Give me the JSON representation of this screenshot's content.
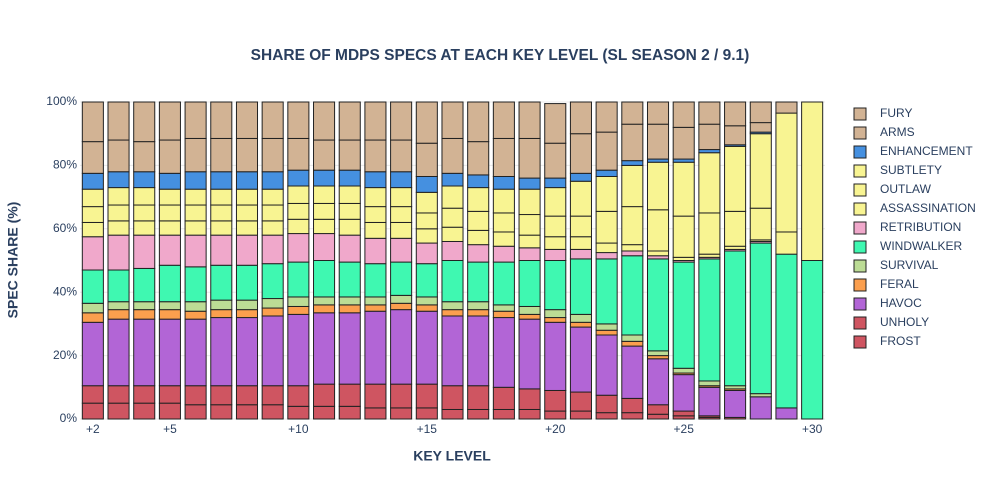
{
  "chart_data": {
    "type": "bar",
    "stacked": true,
    "title": "SHARE OF MDPS SPECS AT EACH KEY LEVEL (SL SEASON 2 / 9.1)",
    "x_label": "KEY LEVEL",
    "y_label": "SPEC SHARE (%)",
    "x": [
      2,
      3,
      4,
      5,
      6,
      7,
      8,
      9,
      10,
      11,
      12,
      13,
      14,
      15,
      16,
      17,
      18,
      19,
      20,
      21,
      22,
      23,
      24,
      25,
      26,
      27,
      28,
      29,
      30
    ],
    "xlim": [
      1.5,
      30.5
    ],
    "xticks": [
      {
        "value": 2,
        "label": "+2"
      },
      {
        "value": 5,
        "label": "+5"
      },
      {
        "value": 10,
        "label": "+10"
      },
      {
        "value": 15,
        "label": "+15"
      },
      {
        "value": 20,
        "label": "+20"
      },
      {
        "value": 25,
        "label": "+25"
      },
      {
        "value": 30,
        "label": "+30"
      }
    ],
    "ylim": [
      0,
      100
    ],
    "yticks": [
      {
        "value": 0,
        "label": "0%"
      },
      {
        "value": 20,
        "label": "20%"
      },
      {
        "value": 40,
        "label": "40%"
      },
      {
        "value": 60,
        "label": "60%"
      },
      {
        "value": 80,
        "label": "80%"
      },
      {
        "value": 100,
        "label": "100%"
      }
    ],
    "series": [
      {
        "name": "FROST",
        "color": "#cf5561",
        "values": [
          5,
          5,
          5,
          5,
          4.5,
          4.5,
          4.5,
          4.5,
          4,
          4,
          4,
          3.5,
          3.5,
          3.5,
          3,
          3,
          3,
          3,
          2.5,
          2.5,
          2,
          2,
          1.5,
          1,
          0.5,
          0.5,
          0,
          0,
          0
        ]
      },
      {
        "name": "UNHOLY",
        "color": "#cf5561",
        "values": [
          5.5,
          5.5,
          5.5,
          5.5,
          6,
          6,
          6,
          6,
          6.5,
          7,
          7,
          7.5,
          7.5,
          7.5,
          7.5,
          7.5,
          7,
          6.5,
          6.5,
          6,
          5.5,
          4.5,
          3,
          1.5,
          0.5,
          0,
          0,
          0,
          0
        ]
      },
      {
        "name": "HAVOC",
        "color": "#b265d6",
        "values": [
          20,
          21,
          21,
          21,
          21,
          21.5,
          21.5,
          22,
          22.5,
          22.5,
          22.5,
          23,
          23.5,
          23,
          22,
          22,
          22,
          22,
          21.5,
          20.5,
          19,
          16.5,
          14.5,
          11.5,
          9,
          8.5,
          7,
          3.5,
          0
        ]
      },
      {
        "name": "FERAL",
        "color": "#fb9f4e",
        "values": [
          3,
          3,
          3,
          3,
          2.5,
          2.5,
          2.5,
          2.5,
          2.5,
          2.5,
          2.5,
          2,
          2,
          2,
          2,
          2,
          2,
          1.5,
          1.5,
          1.5,
          1.5,
          1.5,
          1,
          0.5,
          0.5,
          0.5,
          0,
          0,
          0
        ]
      },
      {
        "name": "SURVIVAL",
        "color": "#bcdc95",
        "values": [
          3,
          2.5,
          2.5,
          2.5,
          3,
          3,
          3,
          3,
          3,
          2.5,
          2.5,
          2.5,
          2.5,
          2.5,
          2.5,
          2.5,
          2,
          2.5,
          2.5,
          2.5,
          2,
          2,
          1.5,
          1.5,
          1.5,
          1,
          1,
          0,
          0
        ]
      },
      {
        "name": "WINDWALKER",
        "color": "#3ff8b1",
        "values": [
          10.5,
          10,
          10.5,
          11.5,
          11,
          11,
          11,
          11,
          11,
          11.5,
          11,
          10.5,
          10.5,
          10.5,
          13,
          12.5,
          13.5,
          14.5,
          15.5,
          17.5,
          20.5,
          25,
          29,
          33.5,
          38.5,
          42.5,
          47.5,
          48.5,
          50
        ]
      },
      {
        "name": "RETRIBUTION",
        "color": "#f0a8cb",
        "values": [
          10.5,
          11,
          10.5,
          9.5,
          10,
          9.5,
          9.5,
          9,
          9,
          8.5,
          8.5,
          8,
          7.5,
          6.5,
          6,
          5.5,
          5,
          4,
          3.5,
          3,
          2,
          1.5,
          1,
          0.5,
          0.5,
          0.5,
          0.5,
          0,
          0
        ]
      },
      {
        "name": "ASSASSINATION",
        "color": "#f8f492",
        "values": [
          4.5,
          4.5,
          4.5,
          4.5,
          4.5,
          4.5,
          4.5,
          4.5,
          4.5,
          4.5,
          5,
          5,
          5,
          4.5,
          4.5,
          4.5,
          4.5,
          4,
          4,
          4,
          3,
          2,
          1.5,
          1,
          1,
          1,
          0.5,
          7,
          0
        ]
      },
      {
        "name": "OUTLAW",
        "color": "#f8f492",
        "values": [
          5,
          5,
          5,
          5,
          5,
          5,
          5,
          5,
          5,
          5,
          5,
          5,
          5,
          5,
          6,
          6,
          6,
          6.5,
          6.5,
          6.5,
          10,
          12,
          13,
          13,
          13,
          11,
          10,
          0,
          50
        ]
      },
      {
        "name": "SUBTLETY",
        "color": "#f8f492",
        "values": [
          5.5,
          5.5,
          5.5,
          5,
          5,
          5,
          5,
          5,
          5.5,
          5.5,
          5.5,
          6,
          6,
          6.5,
          7,
          7.5,
          7.5,
          8,
          9,
          11,
          11,
          13,
          15,
          17,
          19,
          20.5,
          23.5,
          37.5,
          0
        ]
      },
      {
        "name": "ENHANCEMENT",
        "color": "#4590e0",
        "values": [
          5,
          5,
          5,
          5,
          5.5,
          5.5,
          5.5,
          5.5,
          5,
          5,
          5,
          5,
          5,
          5,
          4,
          4,
          4,
          3.5,
          3,
          2.5,
          2,
          1.5,
          1,
          1,
          1,
          0.5,
          0.5,
          0,
          0
        ]
      },
      {
        "name": "ARMS",
        "color": "#d2b394",
        "values": [
          10,
          10,
          9.5,
          10.5,
          10.5,
          10.5,
          10.5,
          10.5,
          10,
          9.5,
          9.5,
          10,
          10,
          10.5,
          11,
          10.5,
          12,
          12.5,
          11,
          12.5,
          12,
          11.5,
          11,
          10,
          8,
          6,
          3,
          0,
          0
        ]
      },
      {
        "name": "FURY",
        "color": "#d2b394",
        "values": [
          12.5,
          12,
          12.5,
          12,
          11.5,
          11.5,
          11.5,
          11.5,
          11.5,
          12,
          12,
          12,
          12,
          13,
          11.5,
          12.5,
          11.5,
          11.5,
          12.5,
          10,
          9.5,
          7,
          7,
          8,
          7,
          7.5,
          6.5,
          3.5,
          0
        ]
      }
    ]
  }
}
